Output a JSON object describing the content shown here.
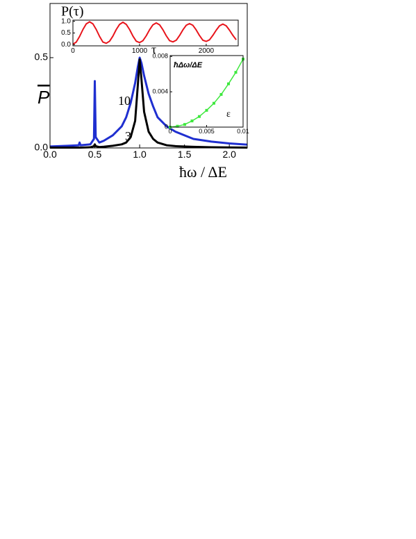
{
  "chart_data": [
    {
      "type": "line",
      "xlabel": "ħω / ΔE",
      "ylabel": "P",
      "x": [
        0,
        0.2,
        0.32,
        0.33,
        0.34,
        0.45,
        0.49,
        0.5,
        0.51,
        0.55,
        0.6,
        0.7,
        0.8,
        0.85,
        0.9,
        0.95,
        0.98,
        1.0,
        1.02,
        1.05,
        1.1,
        1.15,
        1.2,
        1.3,
        1.4,
        1.6,
        1.8,
        2.0,
        2.2
      ],
      "series": [
        {
          "name": "10",
          "color": "#1f2fd0",
          "values": [
            0.008,
            0.012,
            0.015,
            0.03,
            0.015,
            0.02,
            0.05,
            0.37,
            0.06,
            0.03,
            0.04,
            0.07,
            0.12,
            0.17,
            0.25,
            0.36,
            0.45,
            0.5,
            0.47,
            0.4,
            0.3,
            0.23,
            0.17,
            0.12,
            0.09,
            0.05,
            0.035,
            0.025,
            0.018
          ]
        },
        {
          "name": "3",
          "color": "#000000",
          "values": [
            0.002,
            0.002,
            0.002,
            0.002,
            0.002,
            0.004,
            0.01,
            0.02,
            0.01,
            0.005,
            0.007,
            0.012,
            0.02,
            0.03,
            0.06,
            0.15,
            0.35,
            0.49,
            0.38,
            0.2,
            0.09,
            0.05,
            0.03,
            0.015,
            0.01,
            0.006,
            0.004,
            0.003,
            0.002
          ]
        }
      ],
      "xlim": [
        0,
        2.2
      ],
      "ylim": [
        0,
        0.8
      ],
      "xticks": [
        {
          "value": 0,
          "label": "0.0"
        },
        {
          "value": 0.5,
          "label": "0.5"
        },
        {
          "value": 1,
          "label": "1.0"
        },
        {
          "value": 1.5,
          "label": "1.5"
        },
        {
          "value": 2,
          "label": "2.0"
        }
      ],
      "yticks": [
        {
          "value": 0,
          "label": "0.0"
        },
        0.5
      ]
    },
    {
      "type": "line",
      "xlabel": "τ",
      "ylabel": "P(τ)",
      "x": [
        0,
        50,
        100,
        150,
        200,
        250,
        300,
        350,
        400,
        450,
        500,
        550,
        600,
        650,
        700,
        750,
        800,
        850,
        900,
        950,
        1000,
        1050,
        1100,
        1150,
        1200,
        1250,
        1300,
        1350,
        1400,
        1450,
        1500,
        1550,
        1600,
        1650,
        1700,
        1750,
        1800,
        1850,
        1900,
        1950,
        2000,
        2050,
        2100,
        2150,
        2200,
        2250,
        2300,
        2350,
        2400,
        2450
      ],
      "series": [
        {
          "name": null,
          "color": "#e8141b",
          "values": [
            0.02,
            0.11,
            0.35,
            0.65,
            0.89,
            0.98,
            0.89,
            0.65,
            0.35,
            0.11,
            0.06,
            0.15,
            0.37,
            0.65,
            0.87,
            0.96,
            0.87,
            0.65,
            0.37,
            0.15,
            0.09,
            0.17,
            0.38,
            0.64,
            0.85,
            0.93,
            0.85,
            0.64,
            0.38,
            0.17,
            0.12,
            0.19,
            0.39,
            0.63,
            0.83,
            0.9,
            0.83,
            0.63,
            0.39,
            0.19,
            0.14,
            0.21,
            0.4,
            0.62,
            0.81,
            0.88,
            0.81,
            0.62,
            0.4,
            0.21
          ]
        }
      ],
      "xlim": [
        0,
        2480
      ],
      "ylim": [
        -0.05,
        1.05
      ],
      "xticks": [
        0,
        1000,
        2000
      ],
      "yticks": [
        {
          "value": 0,
          "label": "0.0"
        },
        0.5,
        {
          "value": 1,
          "label": "1.0"
        }
      ]
    },
    {
      "type": "line",
      "xlabel": "ε",
      "ylabel": "ħΔω/ΔE",
      "markers": true,
      "x": [
        0,
        0.001,
        0.002,
        0.003,
        0.004,
        0.005,
        0.006,
        0.007,
        0.008,
        0.009,
        0.01
      ],
      "series": [
        {
          "name": null,
          "color": "#3ee83e",
          "values": [
            0,
            0.0001,
            0.0003,
            0.0007,
            0.0012,
            0.0019,
            0.0027,
            0.0037,
            0.0049,
            0.0062,
            0.0077
          ]
        }
      ],
      "xlim": [
        0,
        0.01
      ],
      "ylim": [
        0,
        0.0081
      ],
      "xticks": [
        0,
        0.005,
        0.01
      ],
      "yticks": [
        0,
        0.004,
        0.008
      ]
    }
  ]
}
